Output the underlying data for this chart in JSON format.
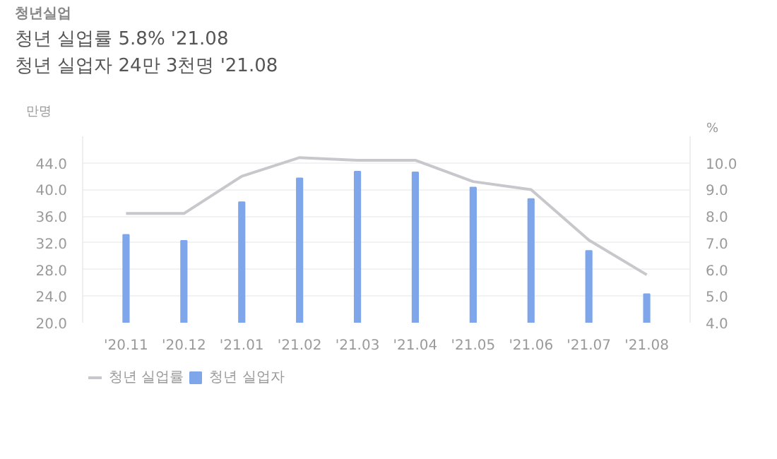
{
  "chart_data": {
    "type": "bar",
    "title": "청년실업",
    "annotations": [
      "청년 실업률 5.8% '21.08",
      "청년 실업자 24만 3천명 '21.08"
    ],
    "ylabel": "만명",
    "y2label": "%",
    "categories": [
      "'20.11",
      "'20.12",
      "'21.01",
      "'21.02",
      "'21.03",
      "'21.04",
      "'21.05",
      "'21.06",
      "'21.07",
      "'21.08"
    ],
    "series": [
      {
        "name": "청년 실업률",
        "type": "line",
        "axis": "y2",
        "color": "#c8c8cc",
        "values": [
          8.1,
          8.1,
          9.5,
          10.2,
          10.1,
          10.1,
          9.3,
          9.0,
          7.1,
          5.8
        ]
      },
      {
        "name": "청년 실업자",
        "color": "#7fa6ea",
        "values": [
          33.2,
          32.3,
          38.1,
          41.7,
          42.7,
          42.6,
          40.3,
          38.6,
          30.8,
          24.3
        ]
      }
    ],
    "ylim": [
      20,
      48
    ],
    "yticks": [
      {
        "value": 20,
        "label": "20.0"
      },
      {
        "value": 24,
        "label": "24.0"
      },
      {
        "value": 28,
        "label": "28.0"
      },
      {
        "value": 32,
        "label": "32.0"
      },
      {
        "value": 36,
        "label": "36.0"
      },
      {
        "value": 40,
        "label": "40.0"
      },
      {
        "value": 44,
        "label": "44.0"
      }
    ],
    "y2lim": [
      4,
      11
    ],
    "y2ticks": [
      {
        "value": 4,
        "label": "4.0"
      },
      {
        "value": 5,
        "label": "5.0"
      },
      {
        "value": 6,
        "label": "6.0"
      },
      {
        "value": 7,
        "label": "7.0"
      },
      {
        "value": 8,
        "label": "8.0"
      },
      {
        "value": 9,
        "label": "9.0"
      },
      {
        "value": 10,
        "label": "10.0"
      }
    ],
    "grid": "y",
    "legend": "bottom left"
  }
}
